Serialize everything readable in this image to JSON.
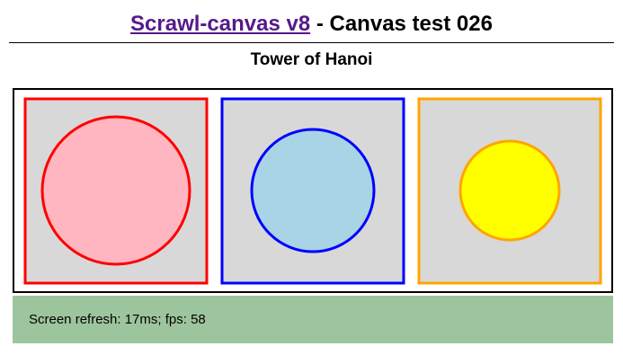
{
  "header": {
    "link_text": "Scrawl-canvas v8",
    "title_rest": " - Canvas test 026"
  },
  "subtitle": "Tower of Hanoi",
  "canvas": {
    "towers": [
      {
        "name": "tower-red",
        "border_color": "#ff0000",
        "fill_color": "#ffb6c1",
        "box_color": "#d8d8d8"
      },
      {
        "name": "tower-blue",
        "border_color": "#0000ff",
        "fill_color": "#a8d4e6",
        "box_color": "#d8d8d8"
      },
      {
        "name": "tower-orange",
        "border_color": "#ffa500",
        "fill_color": "#ffff00",
        "box_color": "#d8d8d8"
      }
    ]
  },
  "report": {
    "text": "Screen refresh: 17ms; fps: 58"
  }
}
